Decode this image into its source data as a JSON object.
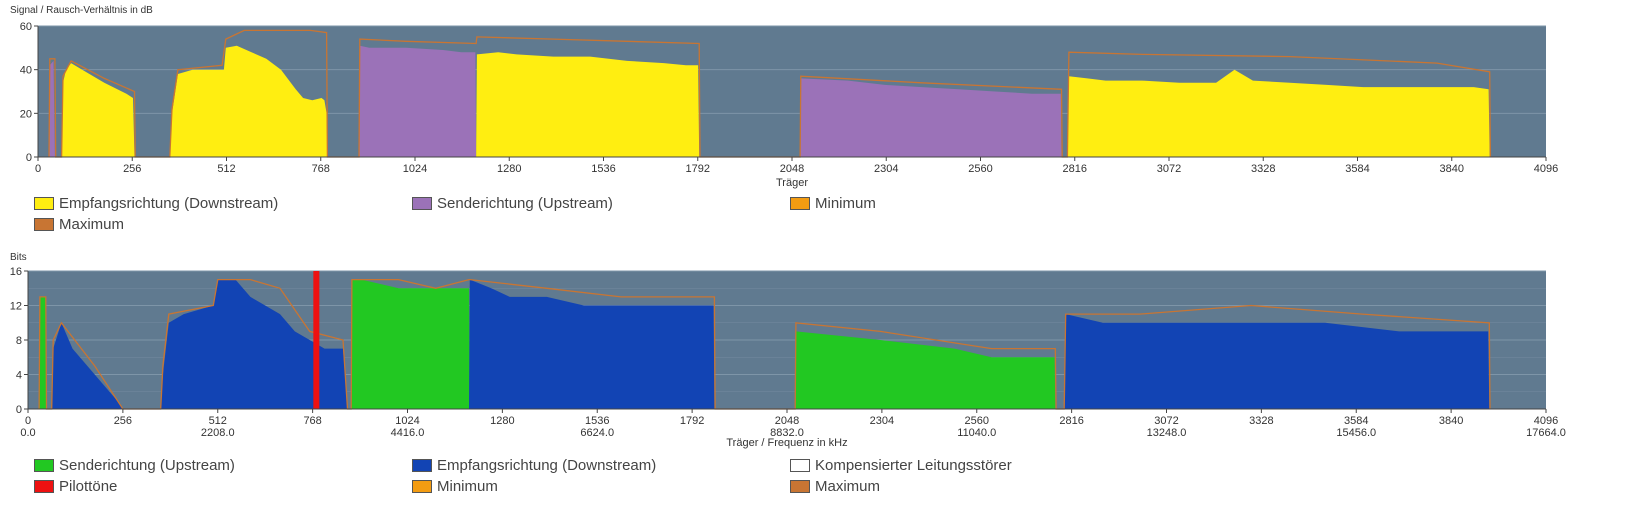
{
  "chart_data": [
    {
      "type": "area",
      "ylabel": "Signal / Rausch-Verhältnis in dB",
      "xlabel": "Träger",
      "xlim": [
        0,
        4096
      ],
      "ylim": [
        0,
        60
      ],
      "x_ticks": [
        0,
        256,
        512,
        768,
        1024,
        1280,
        1536,
        1792,
        2048,
        2304,
        2560,
        2816,
        3072,
        3328,
        3584,
        3840,
        4096
      ],
      "x_tick_labels": [
        "0",
        "256",
        "512",
        "768",
        "1024",
        "1280",
        "1536",
        "1792",
        "2048",
        "2304",
        "2560",
        "2816",
        "3072",
        "3328",
        "3584",
        "3840",
        "4096"
      ],
      "y_ticks": [
        0,
        20,
        40,
        60
      ],
      "grid": true,
      "legend_position": "bottom",
      "series": [
        {
          "name": "Empfangsrichtung (Downstream)",
          "color": "#ffee11",
          "style": "area",
          "points": [
            [
              64,
              0
            ],
            [
              68,
              34
            ],
            [
              76,
              40
            ],
            [
              90,
              43
            ],
            [
              120,
              40
            ],
            [
              180,
              34
            ],
            [
              240,
              29
            ],
            [
              258,
              27
            ],
            [
              262,
              0
            ],
            [
              358,
              0
            ],
            [
              364,
              20
            ],
            [
              380,
              38
            ],
            [
              420,
              40
            ],
            [
              480,
              40
            ],
            [
              505,
              40
            ],
            [
              510,
              50
            ],
            [
              540,
              51
            ],
            [
              580,
              48
            ],
            [
              620,
              45
            ],
            [
              660,
              40
            ],
            [
              700,
              31
            ],
            [
              720,
              27
            ],
            [
              745,
              26
            ],
            [
              770,
              27
            ],
            [
              778,
              26
            ],
            [
              784,
              20
            ],
            [
              786,
              0
            ],
            [
              1190,
              0
            ],
            [
              1192,
              47
            ],
            [
              1250,
              48
            ],
            [
              1300,
              47
            ],
            [
              1400,
              46
            ],
            [
              1500,
              46
            ],
            [
              1600,
              44
            ],
            [
              1700,
              43
            ],
            [
              1760,
              42
            ],
            [
              1793,
              42
            ],
            [
              1796,
              0
            ],
            [
              2796,
              0
            ],
            [
              2800,
              37
            ],
            [
              2850,
              36
            ],
            [
              2900,
              35
            ],
            [
              3000,
              35
            ],
            [
              3100,
              34
            ],
            [
              3200,
              34
            ],
            [
              3250,
              40
            ],
            [
              3300,
              35
            ],
            [
              3400,
              34
            ],
            [
              3500,
              33
            ],
            [
              3600,
              32
            ],
            [
              3700,
              32
            ],
            [
              3800,
              32
            ],
            [
              3900,
              32
            ],
            [
              3940,
              31
            ],
            [
              3943,
              0
            ]
          ]
        },
        {
          "name": "Senderichtung (Upstream)",
          "color": "#9b72b8",
          "style": "area",
          "points": [
            [
              30,
              0
            ],
            [
              32,
              42
            ],
            [
              42,
              44
            ],
            [
              46,
              0
            ],
            [
              872,
              0
            ],
            [
              874,
              51
            ],
            [
              900,
              50
            ],
            [
              1000,
              50
            ],
            [
              1100,
              49
            ],
            [
              1150,
              48
            ],
            [
              1188,
              48
            ],
            [
              1190,
              0
            ],
            [
              2070,
              0
            ],
            [
              2072,
              36
            ],
            [
              2200,
              35
            ],
            [
              2300,
              33
            ],
            [
              2400,
              32
            ],
            [
              2500,
              31
            ],
            [
              2600,
              30
            ],
            [
              2700,
              29
            ],
            [
              2778,
              29
            ],
            [
              2780,
              0
            ]
          ]
        },
        {
          "name": "Minimum",
          "color": "#f39c12",
          "style": "line",
          "points": []
        },
        {
          "name": "Maximum",
          "color": "#c87533",
          "style": "line",
          "points": [
            [
              30,
              0
            ],
            [
              32,
              45
            ],
            [
              46,
              45
            ],
            [
              48,
              0
            ],
            [
              64,
              0
            ],
            [
              68,
              37
            ],
            [
              90,
              44
            ],
            [
              180,
              36
            ],
            [
              262,
              30
            ],
            [
              264,
              0
            ],
            [
              358,
              0
            ],
            [
              364,
              22
            ],
            [
              380,
              40
            ],
            [
              500,
              42
            ],
            [
              510,
              54
            ],
            [
              560,
              58
            ],
            [
              740,
              58
            ],
            [
              784,
              57
            ],
            [
              786,
              0
            ],
            [
              872,
              0
            ],
            [
              874,
              54
            ],
            [
              1000,
              53
            ],
            [
              1190,
              52
            ],
            [
              1192,
              55
            ],
            [
              1400,
              54
            ],
            [
              1600,
              53
            ],
            [
              1796,
              52
            ],
            [
              1798,
              0
            ],
            [
              2070,
              0
            ],
            [
              2072,
              37
            ],
            [
              2400,
              34
            ],
            [
              2780,
              31
            ],
            [
              2782,
              0
            ],
            [
              2796,
              0
            ],
            [
              2800,
              48
            ],
            [
              3000,
              47
            ],
            [
              3400,
              46
            ],
            [
              3800,
              43
            ],
            [
              3943,
              39
            ],
            [
              3945,
              0
            ]
          ]
        }
      ]
    },
    {
      "type": "area",
      "ylabel": "Bits",
      "xlabel": "Träger / Frequenz in kHz",
      "xlim": [
        0,
        4096
      ],
      "ylim": [
        0,
        16
      ],
      "x_ticks": [
        0,
        256,
        512,
        768,
        1024,
        1280,
        1536,
        1792,
        2048,
        2304,
        2560,
        2816,
        3072,
        3328,
        3584,
        3840,
        4096
      ],
      "x_tick_labels": [
        "0",
        "256",
        "512",
        "768",
        "1024",
        "1280",
        "1536",
        "1792",
        "2048",
        "2304",
        "2560",
        "2816",
        "3072",
        "3328",
        "3584",
        "3840",
        "4096"
      ],
      "x_tick_labels_2": [
        "0.0",
        "",
        "2208.0",
        "",
        "4416.0",
        "",
        "6624.0",
        "",
        "8832.0",
        "",
        "11040.0",
        "",
        "13248.0",
        "",
        "15456.0",
        "",
        "17664.0"
      ],
      "y_ticks": [
        0,
        4,
        8,
        12,
        16
      ],
      "grid": true,
      "legend_position": "bottom",
      "pilot_tone_x": 778,
      "series": [
        {
          "name": "Senderichtung (Upstream)",
          "color": "#22c822",
          "style": "area",
          "points": [
            [
              30,
              0
            ],
            [
              32,
              13
            ],
            [
              48,
              13
            ],
            [
              50,
              0
            ],
            [
              872,
              0
            ],
            [
              874,
              15
            ],
            [
              900,
              15
            ],
            [
              1000,
              14
            ],
            [
              1100,
              14
            ],
            [
              1190,
              14
            ],
            [
              1192,
              0
            ],
            [
              2070,
              0
            ],
            [
              2072,
              9
            ],
            [
              2300,
              8
            ],
            [
              2500,
              7
            ],
            [
              2600,
              6
            ],
            [
              2770,
              6
            ],
            [
              2772,
              0
            ]
          ]
        },
        {
          "name": "Empfangsrichtung (Downstream)",
          "color": "#1244b4",
          "style": "area",
          "points": [
            [
              64,
              0
            ],
            [
              68,
              7
            ],
            [
              90,
              10
            ],
            [
              120,
              7
            ],
            [
              180,
              4
            ],
            [
              220,
              2
            ],
            [
              240,
              1
            ],
            [
              256,
              0
            ],
            [
              358,
              0
            ],
            [
              364,
              4
            ],
            [
              380,
              10
            ],
            [
              420,
              11
            ],
            [
              500,
              12
            ],
            [
              512,
              15
            ],
            [
              560,
              15
            ],
            [
              600,
              13
            ],
            [
              640,
              12
            ],
            [
              680,
              11
            ],
            [
              720,
              9
            ],
            [
              760,
              8
            ],
            [
              800,
              7
            ],
            [
              850,
              7
            ],
            [
              862,
              0
            ],
            [
              1190,
              0
            ],
            [
              1192,
              15
            ],
            [
              1250,
              14
            ],
            [
              1300,
              13
            ],
            [
              1400,
              13
            ],
            [
              1500,
              12
            ],
            [
              1600,
              12
            ],
            [
              1700,
              12
            ],
            [
              1800,
              12
            ],
            [
              1850,
              12
            ],
            [
              1852,
              0
            ],
            [
              2796,
              0
            ],
            [
              2800,
              11
            ],
            [
              2900,
              10
            ],
            [
              3000,
              10
            ],
            [
              3100,
              10
            ],
            [
              3300,
              10
            ],
            [
              3500,
              10
            ],
            [
              3700,
              9
            ],
            [
              3800,
              9
            ],
            [
              3940,
              9
            ],
            [
              3943,
              0
            ]
          ]
        },
        {
          "name": "Kompensierter Leitungsstörer",
          "color": "#ffffff",
          "style": "area",
          "points": []
        },
        {
          "name": "Pilottöne",
          "color": "#ee1111",
          "style": "bar",
          "points": []
        },
        {
          "name": "Minimum",
          "color": "#f39c12",
          "style": "line",
          "points": []
        },
        {
          "name": "Maximum",
          "color": "#c87533",
          "style": "line",
          "points": [
            [
              30,
              0
            ],
            [
              32,
              13
            ],
            [
              48,
              13
            ],
            [
              50,
              0
            ],
            [
              64,
              0
            ],
            [
              68,
              8
            ],
            [
              90,
              10
            ],
            [
              180,
              5
            ],
            [
              256,
              0
            ],
            [
              358,
              0
            ],
            [
              364,
              5
            ],
            [
              380,
              11
            ],
            [
              500,
              12
            ],
            [
              512,
              15
            ],
            [
              600,
              15
            ],
            [
              680,
              14
            ],
            [
              760,
              9
            ],
            [
              850,
              8
            ],
            [
              862,
              0
            ],
            [
              872,
              0
            ],
            [
              874,
              15
            ],
            [
              1000,
              15
            ],
            [
              1100,
              14
            ],
            [
              1190,
              15
            ],
            [
              1192,
              15
            ],
            [
              1400,
              14
            ],
            [
              1600,
              13
            ],
            [
              1852,
              13
            ],
            [
              1854,
              0
            ],
            [
              2070,
              0
            ],
            [
              2072,
              10
            ],
            [
              2300,
              9
            ],
            [
              2600,
              7
            ],
            [
              2772,
              7
            ],
            [
              2774,
              0
            ],
            [
              2796,
              0
            ],
            [
              2800,
              11
            ],
            [
              3000,
              11
            ],
            [
              3300,
              12
            ],
            [
              3600,
              11
            ],
            [
              3943,
              10
            ],
            [
              3945,
              0
            ]
          ]
        }
      ]
    }
  ]
}
